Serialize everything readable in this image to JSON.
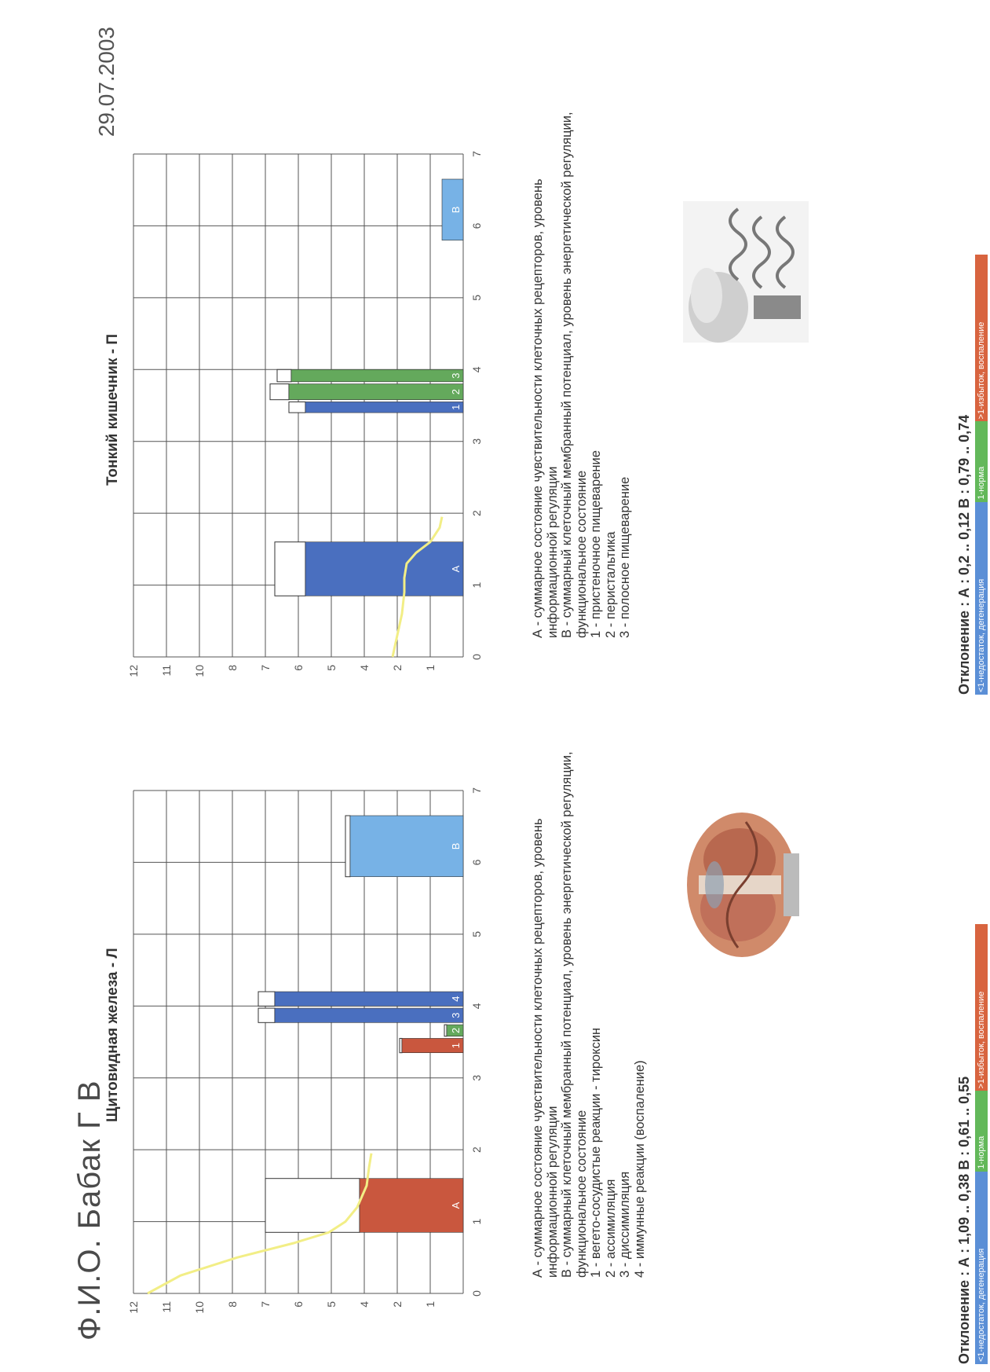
{
  "header": {
    "fio": "Ф.И.О.  Бабак Г В",
    "date": "29.07.2003"
  },
  "charts": [
    {
      "title": "Щитовидная железа - Л",
      "deviation": "Отклонение : А : 1,09 .. 0,38 В : 0,61 .. 0,55",
      "legend": [
        "А - суммарное состояние чувствительности клеточных рецепторов, уровень",
        "информационной регуляции",
        "В - суммарный клеточный мембранный потенциал, уровень энергетической регуляции,",
        "функциональное состояние",
        "1 - вегето-сосудистые реакции - тироксин",
        "2 - ассимиляция",
        "3 - диссимиляция",
        "4 - иммунные реакции (воспаление)"
      ]
    },
    {
      "title": "Тонкий кишечник - П",
      "deviation": "Отклонение : А : 0,2 .. 0,12 В : 0,79 .. 0,74",
      "legend": [
        "А - суммарное состояние чувствительности клеточных рецепторов, уровень",
        "информационной регуляции",
        "В - суммарный клеточный мембранный потенциал, уровень энергетической регуляции,",
        "функциональное состояние",
        "1 - пристеночное пищеварение",
        "2 - перистальтика",
        "3 - полосное пищеварение"
      ]
    }
  ],
  "scale_segments": [
    {
      "label": "<1-недостаток, дегенерация",
      "color": "#5b8fd6"
    },
    {
      "label": "1-норма",
      "color": "#63b85a"
    },
    {
      "label": ">1-избыток, воспаление",
      "color": "#d8643f"
    }
  ],
  "colors": {
    "red": "#c9573e",
    "blue": "#4a6fbf",
    "green": "#64a95c",
    "lightblue": "#77b2e6",
    "curve": "#f2ee86",
    "grid": "#555555"
  },
  "chart_data": [
    {
      "type": "bar",
      "title": "Щитовидная железа - Л",
      "xlim": [
        0,
        7
      ],
      "ylim": [
        0,
        7
      ],
      "y_tick_labels": [
        "",
        "1",
        "2",
        "4",
        "5",
        "6",
        "7",
        "8",
        "10",
        "11",
        "12"
      ],
      "x_tick_labels": [
        "0",
        "1",
        "2",
        "3",
        "4",
        "5",
        "6",
        "7"
      ],
      "bars": [
        {
          "label": "А",
          "x0": 0.85,
          "x1": 1.6,
          "value": 2.2,
          "outline_top": 4.2,
          "color": "red"
        },
        {
          "label": "1",
          "x0": 3.35,
          "x1": 3.55,
          "value": 1.3,
          "outline_top": 1.35,
          "color": "red"
        },
        {
          "label": "2",
          "x0": 3.58,
          "x1": 3.74,
          "value": 0.35,
          "outline_top": 0.4,
          "color": "green"
        },
        {
          "label": "3",
          "x0": 3.77,
          "x1": 3.97,
          "value": 4.0,
          "outline_top": 4.35,
          "color": "blue"
        },
        {
          "label": "4",
          "x0": 4.0,
          "x1": 4.2,
          "value": 4.0,
          "outline_top": 4.35,
          "color": "blue"
        },
        {
          "label": "В",
          "x0": 5.8,
          "x1": 6.65,
          "value": 2.4,
          "outline_top": 2.5,
          "color": "lightblue"
        }
      ],
      "curve": [
        [
          0,
          6.7
        ],
        [
          0.25,
          6.0
        ],
        [
          0.5,
          4.8
        ],
        [
          0.7,
          3.6
        ],
        [
          0.85,
          2.85
        ],
        [
          1.0,
          2.5
        ],
        [
          1.2,
          2.25
        ],
        [
          1.5,
          2.05
        ],
        [
          1.75,
          2.0
        ],
        [
          1.95,
          1.95
        ]
      ]
    },
    {
      "type": "bar",
      "title": "Тонкий кишечник - П",
      "xlim": [
        0,
        7
      ],
      "ylim": [
        0,
        7
      ],
      "y_tick_labels": [
        "",
        "1",
        "2",
        "4",
        "5",
        "6",
        "7",
        "8",
        "10",
        "11",
        "12"
      ],
      "x_tick_labels": [
        "0",
        "1",
        "2",
        "3",
        "4",
        "5",
        "6",
        "7"
      ],
      "bars": [
        {
          "label": "А",
          "x0": 0.85,
          "x1": 1.6,
          "value": 3.35,
          "outline_top": 4.0,
          "color": "blue"
        },
        {
          "label": "1",
          "x0": 3.4,
          "x1": 3.55,
          "value": 3.35,
          "outline_top": 3.7,
          "color": "blue"
        },
        {
          "label": "2",
          "x0": 3.58,
          "x1": 3.8,
          "value": 3.7,
          "outline_top": 4.1,
          "color": "green"
        },
        {
          "label": "3",
          "x0": 3.83,
          "x1": 4.0,
          "value": 3.65,
          "outline_top": 3.95,
          "color": "green"
        },
        {
          "label": "В",
          "x0": 5.8,
          "x1": 6.65,
          "value": 0.45,
          "outline_top": 0.45,
          "color": "lightblue"
        }
      ],
      "curve": [
        [
          0,
          1.5
        ],
        [
          0.3,
          1.4
        ],
        [
          0.6,
          1.3
        ],
        [
          0.9,
          1.25
        ],
        [
          1.1,
          1.25
        ],
        [
          1.3,
          1.2
        ],
        [
          1.45,
          1.0
        ],
        [
          1.6,
          0.7
        ],
        [
          1.8,
          0.5
        ],
        [
          1.95,
          0.45
        ]
      ]
    }
  ]
}
